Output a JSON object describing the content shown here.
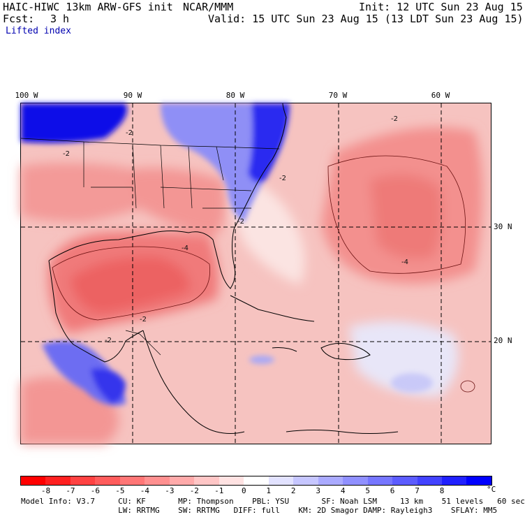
{
  "header": {
    "model": "HAIC-HIWC 13km ARW-GFS init",
    "org": "NCAR/MMM",
    "init": "Init: 12 UTC Sun 23 Aug 15",
    "fcst_label": "Fcst:",
    "fcst_value": "3 h",
    "valid": "Valid: 15 UTC Sun 23 Aug 15 (13 LDT Sun 23 Aug 15)",
    "field": "Lifted index"
  },
  "map": {
    "lon_labels": [
      "100 W",
      "90 W",
      "80 W",
      "70 W",
      "60 W"
    ],
    "lat_labels": [
      "30 N",
      "20 N"
    ],
    "contour_labels": [
      "-2",
      "-2",
      "-4",
      "-2",
      "-2",
      "-4",
      "-2",
      "-2",
      "-2"
    ]
  },
  "colorbar": {
    "colors": [
      "#ff0000",
      "#ff2020",
      "#ff4242",
      "#ff5c5c",
      "#ff7676",
      "#ff9090",
      "#ffaaaa",
      "#ffc6c6",
      "#ffe2e2",
      "#ffffff",
      "#e2e2ff",
      "#c6c6ff",
      "#aaaaff",
      "#9090ff",
      "#7676ff",
      "#5c5cff",
      "#4242ff",
      "#2020ff",
      "#0000ff"
    ],
    "ticks": [
      "-8",
      "-7",
      "-6",
      "-5",
      "-4",
      "-3",
      "-2",
      "-1",
      "0",
      "1",
      "2",
      "3",
      "4",
      "5",
      "6",
      "7",
      "8"
    ],
    "unit": "°C"
  },
  "footer": {
    "line1": "Model Info: V3.7     CU: KF       MP: Thompson    PBL: YSU       SF: Noah LSM     13 km    51 levels   60 sec",
    "line2": "                     LW: RRTMG    SW: RRTMG   DIFF: full    KM: 2D Smagor DAMP: Rayleigh3    SFLAY: MM5"
  }
}
